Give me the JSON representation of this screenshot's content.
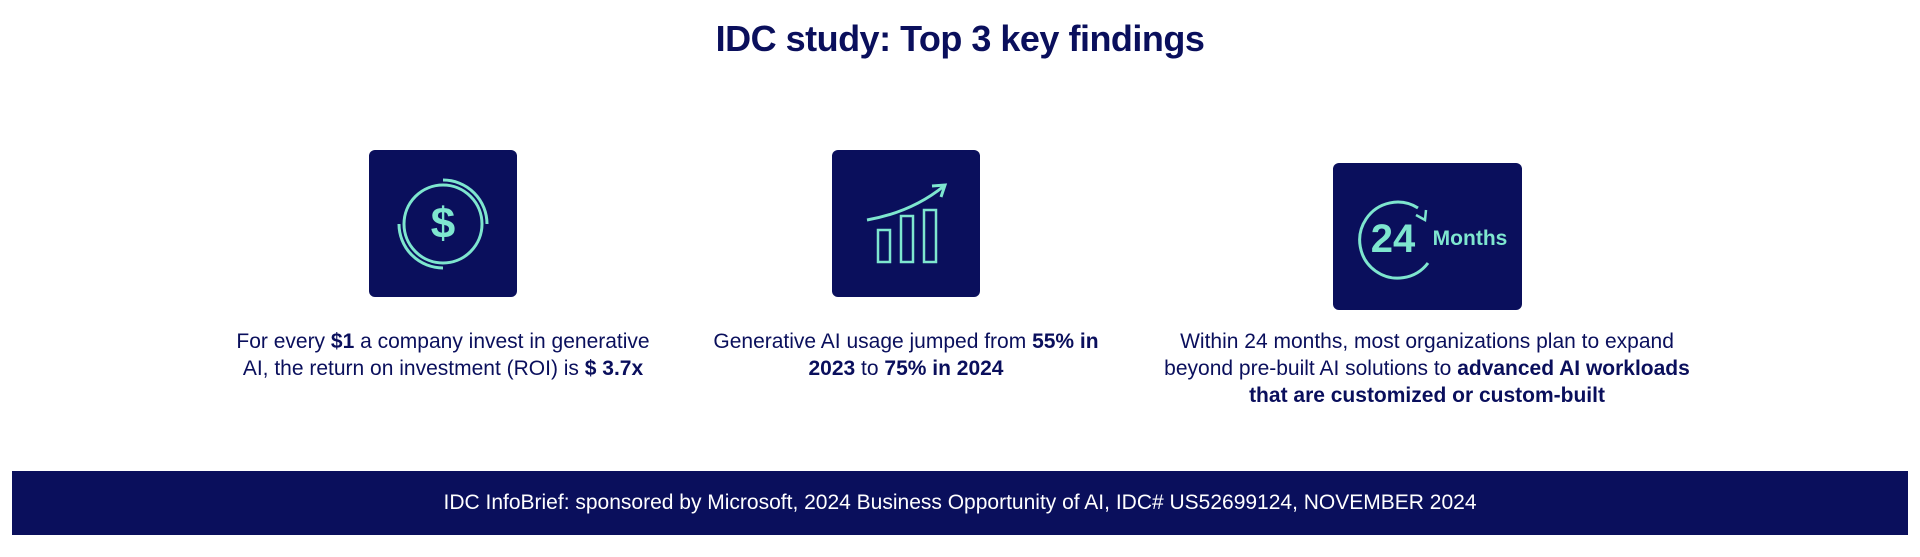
{
  "title": "IDC study: Top 3 key findings",
  "accent_color": "#7ee6cf",
  "brand_color": "#0a0f5c",
  "findings": [
    {
      "icon": "dollar-circle-icon",
      "parts": [
        {
          "text": "For every ",
          "bold": false
        },
        {
          "text": "$1",
          "bold": true
        },
        {
          "text": " a company invest in generative AI, the return on investment (ROI) is ",
          "bold": false
        },
        {
          "text": "$ 3.7x",
          "bold": true
        }
      ]
    },
    {
      "icon": "growth-chart-icon",
      "parts": [
        {
          "text": "Generative AI usage jumped from ",
          "bold": false
        },
        {
          "text": "55% in 2023",
          "bold": true
        },
        {
          "text": " to ",
          "bold": false
        },
        {
          "text": "75% in 2024",
          "bold": true
        }
      ]
    },
    {
      "icon": "24-months-icon",
      "icon_number": "24",
      "icon_label": "Months",
      "parts": [
        {
          "text": "Within 24 months, most organizations plan to expand beyond pre-built AI solutions to ",
          "bold": false
        },
        {
          "text": "advanced AI workloads that are customized or custom-built",
          "bold": true
        }
      ]
    }
  ],
  "footer": "IDC InfoBrief: sponsored by Microsoft, 2024 Business Opportunity of AI, IDC# US52699124, NOVEMBER 2024"
}
